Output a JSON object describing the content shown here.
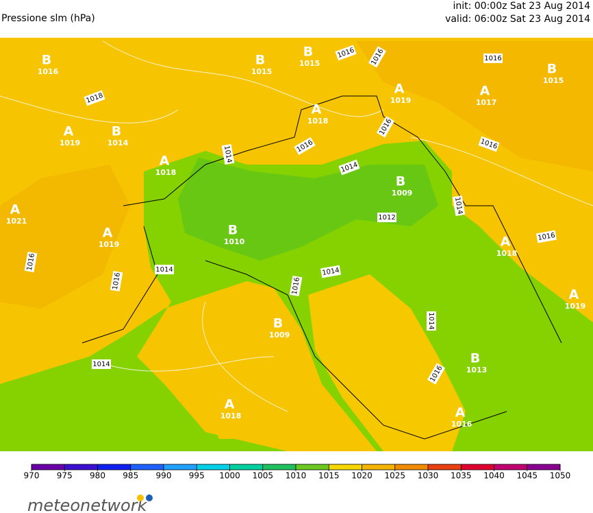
{
  "header": {
    "title": "Pressione slm (hPa)",
    "init": "init: 00:00z Sat 23 Aug 2014",
    "valid": "valid: 06:00z Sat 23 Aug 2014"
  },
  "map": {
    "centers": [
      {
        "letter": "B",
        "value": 1016
      },
      {
        "letter": "B",
        "value": 1015
      },
      {
        "letter": "B",
        "value": 1015
      },
      {
        "letter": "A",
        "value": 1019
      },
      {
        "letter": "A",
        "value": 1017
      },
      {
        "letter": "B",
        "value": 1015
      },
      {
        "letter": "A",
        "value": 1018
      },
      {
        "letter": "A",
        "value": 1019
      },
      {
        "letter": "B",
        "value": 1014
      },
      {
        "letter": "A",
        "value": 1018
      },
      {
        "letter": "A",
        "value": 1021
      },
      {
        "letter": "A",
        "value": 1019
      },
      {
        "letter": "B",
        "value": 1010
      },
      {
        "letter": "B",
        "value": 1009
      },
      {
        "letter": "A",
        "value": 1018
      },
      {
        "letter": "A",
        "value": 1019
      },
      {
        "letter": "B",
        "value": 1009
      },
      {
        "letter": "B",
        "value": 1013
      },
      {
        "letter": "A",
        "value": 1018
      },
      {
        "letter": "A",
        "value": 1016
      }
    ],
    "isobar_labels": [
      1016,
      1016,
      1016,
      1018,
      1016,
      1016,
      1016,
      1014,
      1014,
      1012,
      1014,
      1016,
      1014,
      1014,
      1016,
      1016,
      1016,
      1014,
      1014,
      1016
    ]
  },
  "colorbar": {
    "ticks": [
      970,
      975,
      980,
      985,
      990,
      995,
      1000,
      1005,
      1010,
      1015,
      1020,
      1025,
      1030,
      1035,
      1040,
      1045,
      1050
    ],
    "colors": [
      "#6a00a8",
      "#3c10d0",
      "#1020f0",
      "#2060ff",
      "#20a0ff",
      "#00d0e8",
      "#00d0a0",
      "#20c060",
      "#6cc820",
      "#f6d800",
      "#f5b400",
      "#f08a00",
      "#e84010",
      "#e00030",
      "#c00070",
      "#8a0090"
    ]
  },
  "logo": {
    "text": "meteonetwork"
  }
}
